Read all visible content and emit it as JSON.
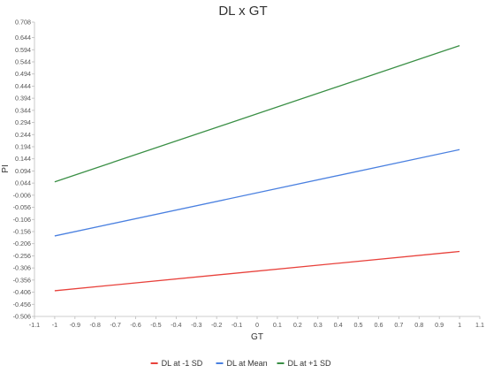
{
  "chart_data": {
    "type": "line",
    "title": "DL x GT",
    "xlabel": "GT",
    "ylabel": "PI",
    "x": [
      -1,
      1
    ],
    "series": [
      {
        "name": "DL at -1 SD",
        "color": "#e8413b",
        "values": [
          -0.4,
          -0.238
        ]
      },
      {
        "name": "DL at Mean",
        "color": "#4a80e0",
        "values": [
          -0.174,
          0.182
        ]
      },
      {
        "name": "DL at +1 SD",
        "color": "#3a8f45",
        "values": [
          0.049,
          0.611
        ]
      }
    ],
    "xlim": [
      -1.1,
      1.1
    ],
    "ylim": [
      -0.506,
      0.708
    ],
    "xticks": [
      "-1.1",
      "-1",
      "-0.9",
      "-0.8",
      "-0.7",
      "-0.6",
      "-0.5",
      "-0.4",
      "-0.3",
      "-0.2",
      "-0.1",
      "0",
      "0.1",
      "0.2",
      "0.3",
      "0.4",
      "0.5",
      "0.6",
      "0.7",
      "0.8",
      "0.9",
      "1",
      "1.1"
    ],
    "yticks": [
      "0.708",
      "0.644",
      "0.594",
      "0.544",
      "0.494",
      "0.444",
      "0.394",
      "0.344",
      "0.294",
      "0.244",
      "0.194",
      "0.144",
      "0.094",
      "0.044",
      "-0.006",
      "-0.056",
      "-0.106",
      "-0.156",
      "-0.206",
      "-0.256",
      "-0.306",
      "-0.356",
      "-0.406",
      "-0.456",
      "-0.506"
    ],
    "grid": false,
    "legend_position": "bottom-center"
  }
}
